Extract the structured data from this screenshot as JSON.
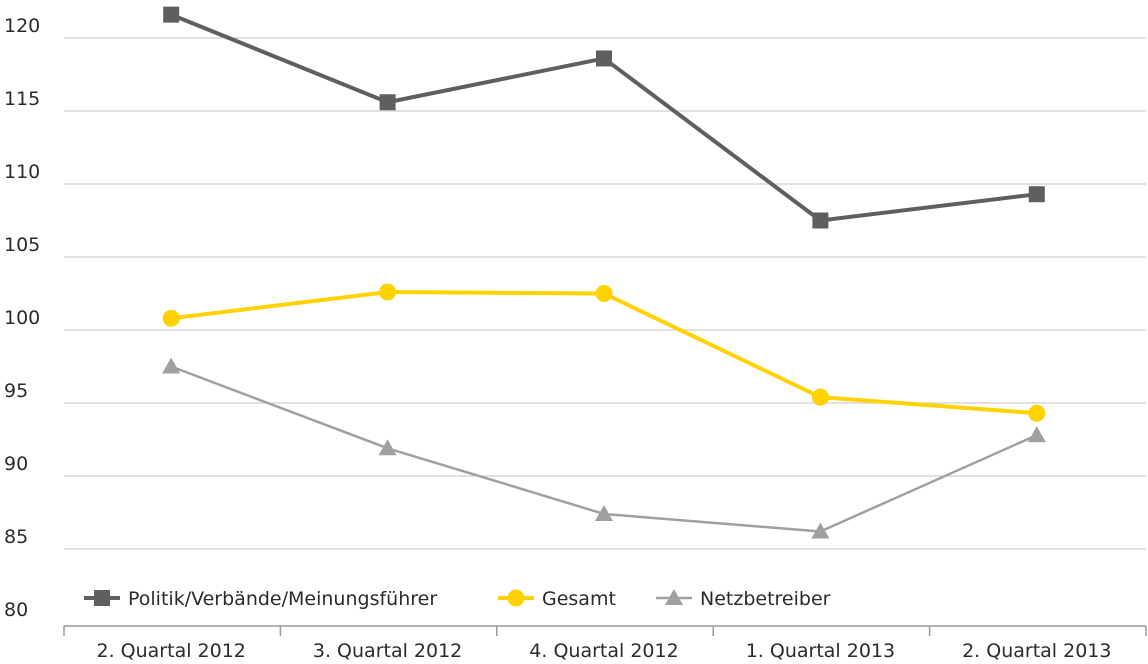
{
  "chart_data": {
    "type": "line",
    "categories": [
      "2. Quartal 2012",
      "3. Quartal 2012",
      "4. Quartal 2012",
      "1. Quartal 2013",
      "2. Quartal 2013"
    ],
    "ylim": [
      80,
      120
    ],
    "yticks": [
      80,
      85,
      90,
      95,
      100,
      105,
      110,
      115,
      120
    ],
    "grid": true,
    "legend_position": "bottom-left",
    "series": [
      {
        "name": "Politik/Verbände/Meinungsführer",
        "values": [
          121.6,
          115.6,
          118.6,
          107.5,
          109.3
        ],
        "color": "#5f5f5f",
        "marker": "square"
      },
      {
        "name": "Gesamt",
        "values": [
          100.8,
          102.6,
          102.5,
          95.4,
          94.3
        ],
        "color": "#ffd200",
        "marker": "circle"
      },
      {
        "name": "Netzbetreiber",
        "values": [
          97.5,
          91.9,
          87.4,
          86.2,
          92.8
        ],
        "color": "#a0a0a0",
        "marker": "triangle"
      }
    ]
  }
}
